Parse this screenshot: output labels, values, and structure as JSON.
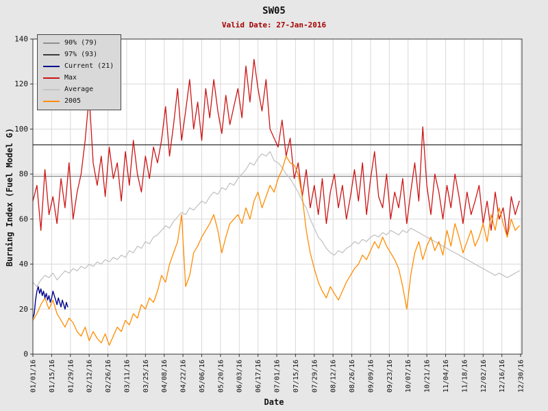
{
  "chart_data": {
    "type": "line",
    "title": "SW05",
    "subtitle": "Valid Date: 27-Jan-2016",
    "xlabel": "Date",
    "ylabel": "Burning Index (Fuel Model G)",
    "ylim": [
      0,
      140
    ],
    "yticks": [
      0,
      20,
      40,
      60,
      80,
      100,
      120,
      140
    ],
    "x_domain_days": [
      0,
      365
    ],
    "x_tick_interval_days": 14,
    "x_tick_labels": [
      "01/01/16",
      "01/15/16",
      "01/29/16",
      "02/12/16",
      "02/26/16",
      "03/11/16",
      "03/25/16",
      "04/08/16",
      "04/22/16",
      "05/06/16",
      "05/20/16",
      "06/03/16",
      "06/17/16",
      "07/01/16",
      "07/15/16",
      "07/29/16",
      "08/12/16",
      "08/26/16",
      "09/09/16",
      "09/23/16",
      "10/07/16",
      "10/21/16",
      "11/04/16",
      "11/18/16",
      "12/02/16",
      "12/16/16",
      "12/30/16"
    ],
    "grid": true,
    "legend_position": "top-left",
    "legend": [
      {
        "label": "90% (79)",
        "color": "#8f8f8f"
      },
      {
        "label": "97% (93)",
        "color": "#3a3a3a"
      },
      {
        "label": "Current (21)",
        "color": "#00008b"
      },
      {
        "label": "Max",
        "color": "#cc1414"
      },
      {
        "label": "Average",
        "color": "#c3c3c3"
      },
      {
        "label": "2005",
        "color": "#ff8c00"
      }
    ],
    "thresholds": [
      {
        "label": "90% (79)",
        "value": 79,
        "color": "#8f8f8f"
      },
      {
        "label": "97% (93)",
        "value": 93,
        "color": "#3a3a3a"
      }
    ],
    "series": [
      {
        "name": "Average",
        "color": "#c3c3c3",
        "stroke_width": 1.3,
        "day_start": 0,
        "day_step": 3,
        "values": [
          32,
          30,
          33,
          35,
          34,
          36,
          33,
          35,
          37,
          36,
          38,
          37,
          39,
          38,
          40,
          39,
          41,
          40,
          42,
          41,
          43,
          42,
          44,
          43,
          46,
          45,
          48,
          47,
          50,
          49,
          52,
          53,
          55,
          57,
          56,
          59,
          61,
          63,
          62,
          65,
          64,
          66,
          68,
          67,
          70,
          72,
          71,
          74,
          73,
          76,
          75,
          78,
          80,
          82,
          85,
          84,
          87,
          89,
          88,
          90,
          86,
          85,
          83,
          80,
          78,
          75,
          72,
          68,
          65,
          60,
          56,
          52,
          50,
          47,
          45,
          44,
          46,
          45,
          47,
          48,
          50,
          49,
          51,
          50,
          52,
          53,
          52,
          54,
          53,
          55,
          54,
          53,
          55,
          54,
          56,
          55,
          54,
          53,
          52,
          51,
          50,
          49,
          48,
          47,
          46,
          45,
          44,
          43,
          42,
          41,
          40,
          39,
          38,
          37,
          36,
          35,
          36,
          35,
          34,
          35,
          36,
          37
        ]
      },
      {
        "name": "Max",
        "color": "#cc1414",
        "stroke_width": 1.3,
        "day_start": 0,
        "day_step": 3,
        "values": [
          68,
          75,
          55,
          82,
          62,
          70,
          58,
          78,
          65,
          85,
          60,
          72,
          80,
          95,
          115,
          85,
          75,
          88,
          70,
          92,
          78,
          85,
          68,
          90,
          75,
          95,
          80,
          72,
          88,
          78,
          92,
          85,
          95,
          110,
          88,
          102,
          118,
          95,
          108,
          122,
          100,
          112,
          95,
          118,
          105,
          122,
          108,
          98,
          115,
          102,
          110,
          118,
          105,
          128,
          112,
          131,
          118,
          108,
          122,
          100,
          96,
          92,
          104,
          88,
          96,
          78,
          85,
          70,
          82,
          65,
          75,
          62,
          78,
          58,
          72,
          80,
          65,
          75,
          60,
          70,
          82,
          68,
          85,
          62,
          78,
          90,
          70,
          65,
          80,
          60,
          72,
          65,
          78,
          58,
          72,
          85,
          68,
          101,
          75,
          62,
          80,
          72,
          60,
          75,
          65,
          80,
          70,
          58,
          72,
          62,
          68,
          75,
          58,
          68,
          55,
          72,
          60,
          65,
          52,
          70,
          62,
          68
        ]
      },
      {
        "name": "2005",
        "color": "#ff8c00",
        "stroke_width": 1.3,
        "day_start": 0,
        "day_step": 3,
        "values": [
          15,
          18,
          22,
          25,
          20,
          24,
          18,
          15,
          12,
          16,
          14,
          10,
          8,
          12,
          6,
          10,
          7,
          5,
          9,
          4,
          8,
          12,
          10,
          15,
          13,
          18,
          16,
          22,
          20,
          25,
          23,
          28,
          35,
          32,
          40,
          45,
          50,
          62,
          30,
          35,
          45,
          48,
          52,
          55,
          58,
          62,
          55,
          45,
          52,
          58,
          60,
          62,
          58,
          65,
          60,
          68,
          72,
          65,
          70,
          75,
          72,
          78,
          82,
          88,
          85,
          84,
          80,
          70,
          55,
          45,
          38,
          32,
          28,
          25,
          30,
          27,
          24,
          28,
          32,
          35,
          38,
          40,
          44,
          42,
          46,
          50,
          47,
          52,
          48,
          45,
          42,
          38,
          30,
          20,
          35,
          45,
          50,
          42,
          48,
          52,
          46,
          50,
          44,
          55,
          48,
          58,
          52,
          45,
          50,
          55,
          48,
          52,
          58,
          50,
          62,
          55,
          65,
          58,
          52,
          60,
          55,
          57
        ]
      },
      {
        "name": "Current (21)",
        "color": "#00008b",
        "stroke_width": 1.4,
        "day_start": 0,
        "day_step": 1,
        "values": [
          16,
          18,
          24,
          28,
          30,
          27,
          29,
          26,
          28,
          25,
          27,
          24,
          26,
          23,
          25,
          28,
          26,
          24,
          22,
          25,
          23,
          21,
          24,
          22,
          20,
          23,
          21
        ]
      }
    ]
  }
}
